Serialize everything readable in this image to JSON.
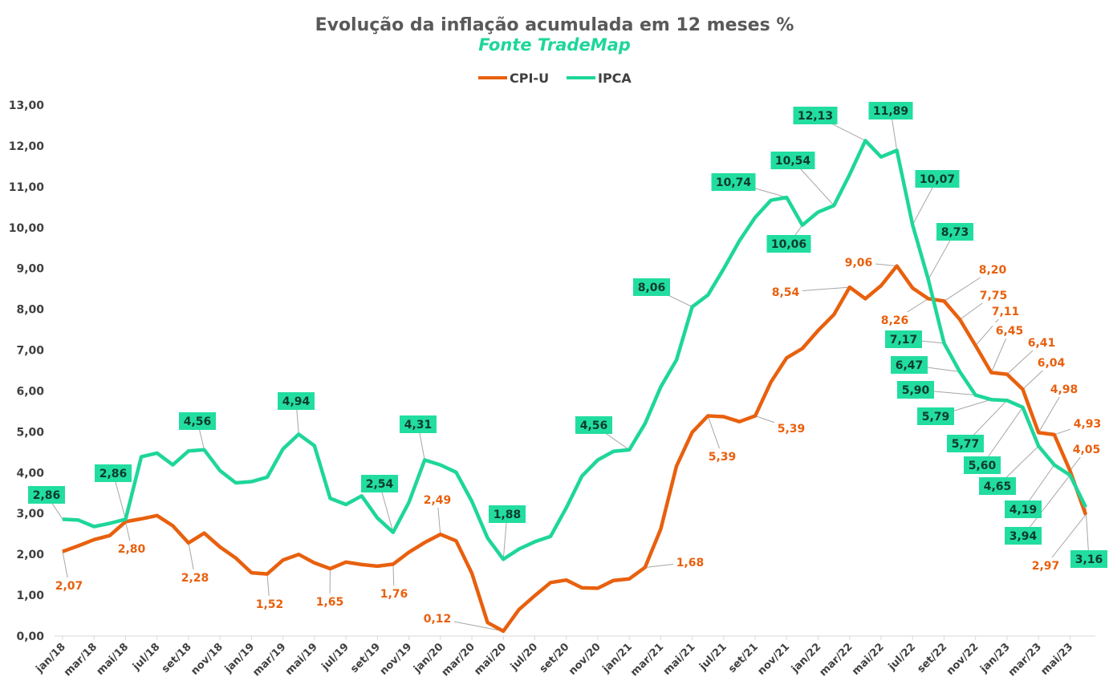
{
  "chart_data": {
    "type": "line",
    "title": "Evolução da inflação acumulada em 12 meses  %",
    "subtitle": "Fonte TradeMap",
    "legend_position": "top",
    "grid": false,
    "ylim": [
      0,
      13
    ],
    "y_ticks": [
      "0,00",
      "1,00",
      "2,00",
      "3,00",
      "4,00",
      "5,00",
      "6,00",
      "7,00",
      "8,00",
      "9,00",
      "10,00",
      "11,00",
      "12,00",
      "13,00"
    ],
    "x": [
      "jan/18",
      "fev/18",
      "mar/18",
      "abr/18",
      "mai/18",
      "jun/18",
      "jul/18",
      "ago/18",
      "set/18",
      "out/18",
      "nov/18",
      "dez/18",
      "jan/19",
      "fev/19",
      "mar/19",
      "abr/19",
      "mai/19",
      "jun/19",
      "jul/19",
      "ago/19",
      "set/19",
      "out/19",
      "nov/19",
      "dez/19",
      "jan/20",
      "fev/20",
      "mar/20",
      "abr/20",
      "mai/20",
      "jun/20",
      "jul/20",
      "ago/20",
      "set/20",
      "out/20",
      "nov/20",
      "dez/20",
      "jan/21",
      "fev/21",
      "mar/21",
      "abr/21",
      "mai/21",
      "jun/21",
      "jul/21",
      "ago/21",
      "set/21",
      "out/21",
      "nov/21",
      "dez/21",
      "jan/22",
      "fev/22",
      "mar/22",
      "abr/22",
      "mai/22",
      "jun/22",
      "jul/22",
      "ago/22",
      "set/22",
      "out/22",
      "nov/22",
      "dez/22",
      "jan/23",
      "fev/23",
      "mar/23",
      "abr/23",
      "mai/23",
      "jun/23"
    ],
    "x_tick_labels": [
      "jan/18",
      "mar/18",
      "mai/18",
      "jul/18",
      "set/18",
      "nov/18",
      "jan/19",
      "mar/19",
      "mai/19",
      "jul/19",
      "set/19",
      "nov/19",
      "jan/20",
      "mar/20",
      "mai/20",
      "jul/20",
      "set/20",
      "nov/20",
      "jan/21",
      "mar/21",
      "mai/21",
      "jul/21",
      "set/21",
      "nov/21",
      "jan/22",
      "mar/22",
      "mai/22",
      "jul/22",
      "set/22",
      "nov/22",
      "jan/23",
      "mar/23",
      "mai/23"
    ],
    "series": [
      {
        "name": "CPI-U",
        "color": "#E8600E",
        "values": [
          2.07,
          2.21,
          2.36,
          2.46,
          2.8,
          2.87,
          2.95,
          2.7,
          2.28,
          2.52,
          2.18,
          1.91,
          1.55,
          1.52,
          1.86,
          2.0,
          1.79,
          1.65,
          1.81,
          1.75,
          1.71,
          1.76,
          2.05,
          2.29,
          2.49,
          2.33,
          1.54,
          0.33,
          0.12,
          0.65,
          0.99,
          1.31,
          1.37,
          1.18,
          1.17,
          1.36,
          1.4,
          1.68,
          2.62,
          4.16,
          4.99,
          5.39,
          5.37,
          5.25,
          5.39,
          6.22,
          6.81,
          7.04,
          7.48,
          7.87,
          8.54,
          8.26,
          8.58,
          9.06,
          8.52,
          8.26,
          8.2,
          7.75,
          7.11,
          6.45,
          6.41,
          6.04,
          4.98,
          4.93,
          4.05,
          2.97
        ],
        "data_labels": [
          {
            "x": "jan/18",
            "text": "2,07"
          },
          {
            "x": "mai/18",
            "text": "2,80"
          },
          {
            "x": "set/18",
            "text": "2,28"
          },
          {
            "x": "fev/19",
            "text": "1,52"
          },
          {
            "x": "jun/19",
            "text": "1,65"
          },
          {
            "x": "out/19",
            "text": "1,76"
          },
          {
            "x": "jan/20",
            "text": "2,49"
          },
          {
            "x": "mai/20",
            "text": "0,12"
          },
          {
            "x": "fev/21",
            "text": "1,68"
          },
          {
            "x": "jun/21",
            "text": "5,39"
          },
          {
            "x": "set/21",
            "text": "5,39"
          },
          {
            "x": "mar/22",
            "text": "8,54"
          },
          {
            "x": "jun/22",
            "text": "9,06"
          },
          {
            "x": "ago/22",
            "text": "8,26"
          },
          {
            "x": "set/22",
            "text": "8,20"
          },
          {
            "x": "out/22",
            "text": "7,75"
          },
          {
            "x": "nov/22",
            "text": "7,11"
          },
          {
            "x": "dez/22",
            "text": "6,45"
          },
          {
            "x": "jan/23",
            "text": "6,41"
          },
          {
            "x": "fev/23",
            "text": "6,04"
          },
          {
            "x": "mar/23",
            "text": "4,98"
          },
          {
            "x": "abr/23",
            "text": "4,93"
          },
          {
            "x": "mai/23",
            "text": "4,05"
          },
          {
            "x": "jun/23",
            "text": "2,97"
          }
        ]
      },
      {
        "name": "IPCA",
        "color": "#1ED69A",
        "values": [
          2.86,
          2.84,
          2.68,
          2.76,
          2.86,
          4.39,
          4.48,
          4.19,
          4.53,
          4.56,
          4.05,
          3.75,
          3.78,
          3.89,
          4.58,
          4.94,
          4.66,
          3.37,
          3.22,
          3.43,
          2.89,
          2.54,
          3.27,
          4.31,
          4.19,
          4.01,
          3.3,
          2.4,
          1.88,
          2.13,
          2.31,
          2.44,
          3.14,
          3.92,
          4.31,
          4.52,
          4.56,
          5.2,
          6.1,
          6.76,
          8.06,
          8.35,
          8.99,
          9.68,
          10.25,
          10.67,
          10.74,
          10.06,
          10.38,
          10.54,
          11.3,
          12.13,
          11.73,
          11.89,
          10.07,
          8.73,
          7.17,
          6.47,
          5.9,
          5.79,
          5.77,
          5.6,
          4.65,
          4.19,
          3.94,
          3.16
        ],
        "data_labels": [
          {
            "x": "jan/18",
            "text": "2,86"
          },
          {
            "x": "mai/18",
            "text": "2,86"
          },
          {
            "x": "out/18",
            "text": "4,56"
          },
          {
            "x": "abr/19",
            "text": "4,94"
          },
          {
            "x": "out/19",
            "text": "2,54"
          },
          {
            "x": "dez/19",
            "text": "4,31"
          },
          {
            "x": "mai/20",
            "text": "1,88"
          },
          {
            "x": "jan/21",
            "text": "4,56"
          },
          {
            "x": "mai/21",
            "text": "8,06"
          },
          {
            "x": "nov/21",
            "text": "10,74"
          },
          {
            "x": "dez/21",
            "text": "10,06"
          },
          {
            "x": "fev/22",
            "text": "10,54"
          },
          {
            "x": "abr/22",
            "text": "12,13"
          },
          {
            "x": "jun/22",
            "text": "11,89"
          },
          {
            "x": "jul/22",
            "text": "10,07"
          },
          {
            "x": "ago/22",
            "text": "8,73"
          },
          {
            "x": "set/22",
            "text": "7,17"
          },
          {
            "x": "out/22",
            "text": "6,47"
          },
          {
            "x": "nov/22",
            "text": "5,90"
          },
          {
            "x": "dez/22",
            "text": "5,79"
          },
          {
            "x": "jan/23",
            "text": "5,77"
          },
          {
            "x": "fev/23",
            "text": "5,60"
          },
          {
            "x": "mar/23",
            "text": "4,65"
          },
          {
            "x": "abr/23",
            "text": "4,19"
          },
          {
            "x": "mai/23",
            "text": "3,94"
          },
          {
            "x": "jun/23",
            "text": "3,16"
          }
        ]
      }
    ]
  }
}
